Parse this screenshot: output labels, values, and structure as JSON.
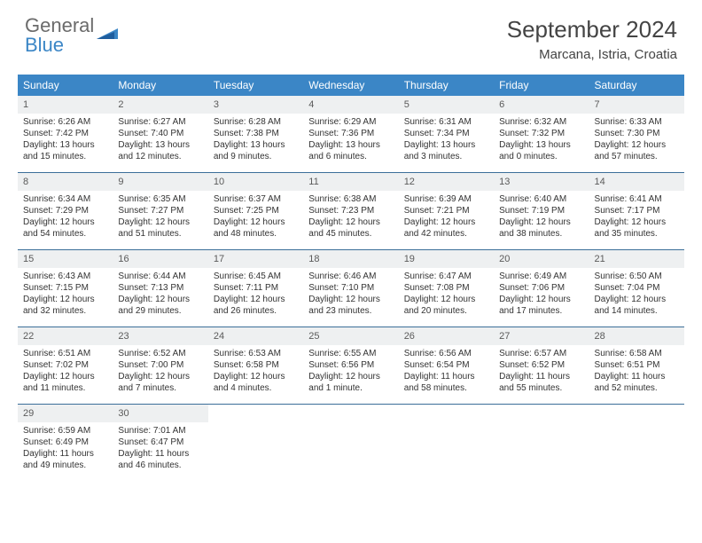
{
  "logo": {
    "text1": "General",
    "text2": "Blue"
  },
  "title": "September 2024",
  "location": "Marcana, Istria, Croatia",
  "dayNames": [
    "Sunday",
    "Monday",
    "Tuesday",
    "Wednesday",
    "Thursday",
    "Friday",
    "Saturday"
  ],
  "colors": {
    "headerBg": "#3b86c6",
    "headerText": "#ffffff",
    "dayNumBg": "#eef0f1",
    "bodyText": "#333333",
    "weekBorder": "#3b6e99"
  },
  "grid": {
    "startWeekday": 0,
    "daysInMonth": 30
  },
  "days": [
    {
      "n": 1,
      "sunrise": "6:26 AM",
      "sunset": "7:42 PM",
      "daylight": "13 hours and 15 minutes."
    },
    {
      "n": 2,
      "sunrise": "6:27 AM",
      "sunset": "7:40 PM",
      "daylight": "13 hours and 12 minutes."
    },
    {
      "n": 3,
      "sunrise": "6:28 AM",
      "sunset": "7:38 PM",
      "daylight": "13 hours and 9 minutes."
    },
    {
      "n": 4,
      "sunrise": "6:29 AM",
      "sunset": "7:36 PM",
      "daylight": "13 hours and 6 minutes."
    },
    {
      "n": 5,
      "sunrise": "6:31 AM",
      "sunset": "7:34 PM",
      "daylight": "13 hours and 3 minutes."
    },
    {
      "n": 6,
      "sunrise": "6:32 AM",
      "sunset": "7:32 PM",
      "daylight": "13 hours and 0 minutes."
    },
    {
      "n": 7,
      "sunrise": "6:33 AM",
      "sunset": "7:30 PM",
      "daylight": "12 hours and 57 minutes."
    },
    {
      "n": 8,
      "sunrise": "6:34 AM",
      "sunset": "7:29 PM",
      "daylight": "12 hours and 54 minutes."
    },
    {
      "n": 9,
      "sunrise": "6:35 AM",
      "sunset": "7:27 PM",
      "daylight": "12 hours and 51 minutes."
    },
    {
      "n": 10,
      "sunrise": "6:37 AM",
      "sunset": "7:25 PM",
      "daylight": "12 hours and 48 minutes."
    },
    {
      "n": 11,
      "sunrise": "6:38 AM",
      "sunset": "7:23 PM",
      "daylight": "12 hours and 45 minutes."
    },
    {
      "n": 12,
      "sunrise": "6:39 AM",
      "sunset": "7:21 PM",
      "daylight": "12 hours and 42 minutes."
    },
    {
      "n": 13,
      "sunrise": "6:40 AM",
      "sunset": "7:19 PM",
      "daylight": "12 hours and 38 minutes."
    },
    {
      "n": 14,
      "sunrise": "6:41 AM",
      "sunset": "7:17 PM",
      "daylight": "12 hours and 35 minutes."
    },
    {
      "n": 15,
      "sunrise": "6:43 AM",
      "sunset": "7:15 PM",
      "daylight": "12 hours and 32 minutes."
    },
    {
      "n": 16,
      "sunrise": "6:44 AM",
      "sunset": "7:13 PM",
      "daylight": "12 hours and 29 minutes."
    },
    {
      "n": 17,
      "sunrise": "6:45 AM",
      "sunset": "7:11 PM",
      "daylight": "12 hours and 26 minutes."
    },
    {
      "n": 18,
      "sunrise": "6:46 AM",
      "sunset": "7:10 PM",
      "daylight": "12 hours and 23 minutes."
    },
    {
      "n": 19,
      "sunrise": "6:47 AM",
      "sunset": "7:08 PM",
      "daylight": "12 hours and 20 minutes."
    },
    {
      "n": 20,
      "sunrise": "6:49 AM",
      "sunset": "7:06 PM",
      "daylight": "12 hours and 17 minutes."
    },
    {
      "n": 21,
      "sunrise": "6:50 AM",
      "sunset": "7:04 PM",
      "daylight": "12 hours and 14 minutes."
    },
    {
      "n": 22,
      "sunrise": "6:51 AM",
      "sunset": "7:02 PM",
      "daylight": "12 hours and 11 minutes."
    },
    {
      "n": 23,
      "sunrise": "6:52 AM",
      "sunset": "7:00 PM",
      "daylight": "12 hours and 7 minutes."
    },
    {
      "n": 24,
      "sunrise": "6:53 AM",
      "sunset": "6:58 PM",
      "daylight": "12 hours and 4 minutes."
    },
    {
      "n": 25,
      "sunrise": "6:55 AM",
      "sunset": "6:56 PM",
      "daylight": "12 hours and 1 minute."
    },
    {
      "n": 26,
      "sunrise": "6:56 AM",
      "sunset": "6:54 PM",
      "daylight": "11 hours and 58 minutes."
    },
    {
      "n": 27,
      "sunrise": "6:57 AM",
      "sunset": "6:52 PM",
      "daylight": "11 hours and 55 minutes."
    },
    {
      "n": 28,
      "sunrise": "6:58 AM",
      "sunset": "6:51 PM",
      "daylight": "11 hours and 52 minutes."
    },
    {
      "n": 29,
      "sunrise": "6:59 AM",
      "sunset": "6:49 PM",
      "daylight": "11 hours and 49 minutes."
    },
    {
      "n": 30,
      "sunrise": "7:01 AM",
      "sunset": "6:47 PM",
      "daylight": "11 hours and 46 minutes."
    }
  ],
  "labels": {
    "sunrise": "Sunrise:",
    "sunset": "Sunset:",
    "daylight": "Daylight:"
  }
}
